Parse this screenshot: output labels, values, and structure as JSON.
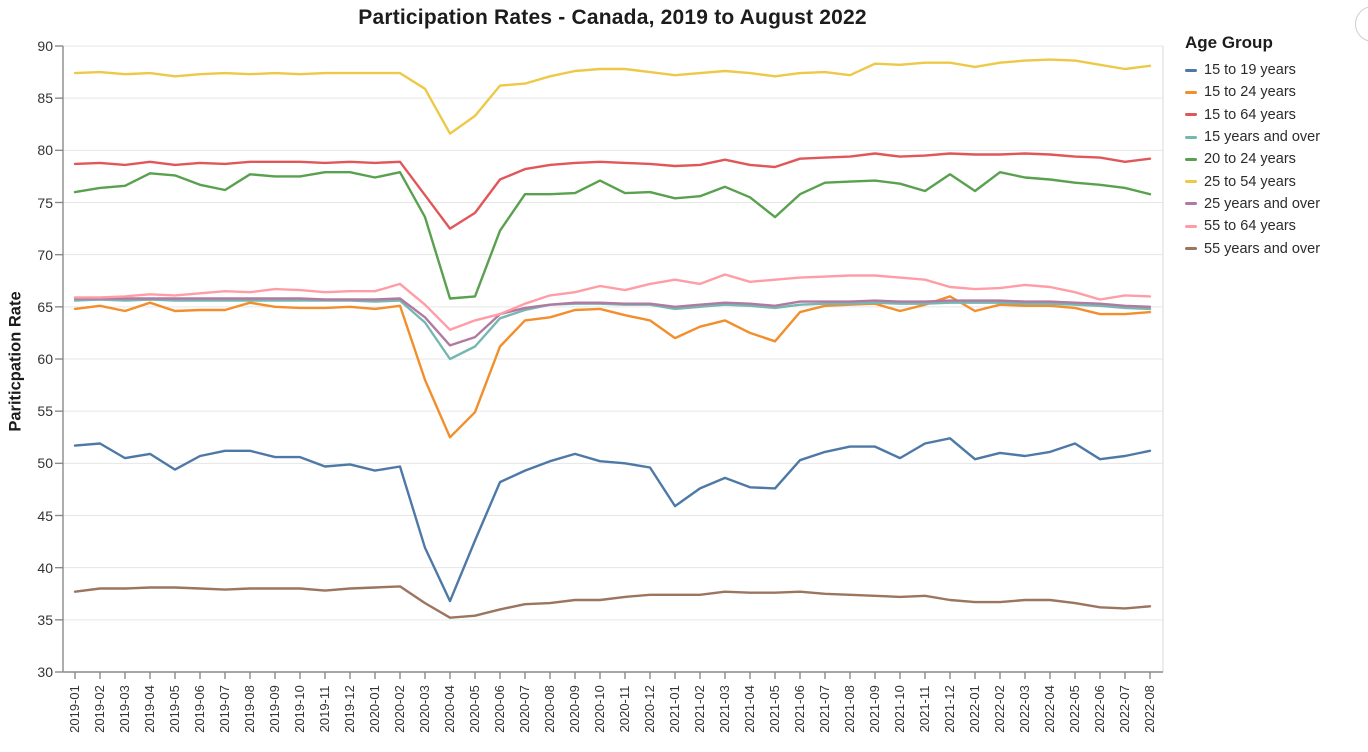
{
  "page": {
    "title": "Participation Rates - Canada, 2019 to August 2022"
  },
  "chart_data": {
    "type": "line",
    "title": "Participation Rates - Canada, 2019 to August 2022",
    "xlabel": "",
    "ylabel": "Pariticpation Rate",
    "ylim": [
      30,
      90
    ],
    "yticks": [
      30,
      35,
      40,
      45,
      50,
      55,
      60,
      65,
      70,
      75,
      80,
      85,
      90
    ],
    "grid": "horizontal-light",
    "legend_title": "Age Group",
    "legend_position": "right",
    "x": [
      "2019-01",
      "2019-02",
      "2019-03",
      "2019-04",
      "2019-05",
      "2019-06",
      "2019-07",
      "2019-08",
      "2019-09",
      "2019-10",
      "2019-11",
      "2019-12",
      "2020-01",
      "2020-02",
      "2020-03",
      "2020-04",
      "2020-05",
      "2020-06",
      "2020-07",
      "2020-08",
      "2020-09",
      "2020-10",
      "2020-11",
      "2020-12",
      "2021-01",
      "2021-02",
      "2021-03",
      "2021-04",
      "2021-05",
      "2021-06",
      "2021-07",
      "2021-08",
      "2021-09",
      "2021-10",
      "2021-11",
      "2021-12",
      "2022-01",
      "2022-02",
      "2022-03",
      "2022-04",
      "2022-05",
      "2022-06",
      "2022-07",
      "2022-08"
    ],
    "series": [
      {
        "name": "15 to 19 years",
        "color": "#4e79a7",
        "values": [
          51.7,
          51.9,
          50.5,
          50.9,
          49.4,
          50.7,
          51.2,
          51.2,
          50.6,
          50.6,
          49.7,
          49.9,
          49.3,
          49.7,
          41.9,
          36.8,
          42.6,
          48.2,
          49.3,
          50.2,
          50.9,
          50.2,
          50.0,
          49.6,
          45.9,
          47.6,
          48.6,
          47.7,
          47.6,
          50.3,
          51.1,
          51.6,
          51.6,
          50.5,
          51.9,
          52.4,
          50.4,
          51.0,
          50.7,
          51.1,
          51.9,
          50.4,
          50.7,
          51.2
        ]
      },
      {
        "name": "15 to 24 years",
        "color": "#f28e2b",
        "values": [
          64.8,
          65.1,
          64.6,
          65.4,
          64.6,
          64.7,
          64.7,
          65.4,
          65.0,
          64.9,
          64.9,
          65.0,
          64.8,
          65.1,
          58.0,
          52.5,
          54.9,
          61.2,
          63.7,
          64.0,
          64.7,
          64.8,
          64.2,
          63.7,
          62.0,
          63.1,
          63.7,
          62.5,
          61.7,
          64.5,
          65.1,
          65.2,
          65.3,
          64.6,
          65.2,
          66.0,
          64.6,
          65.2,
          65.1,
          65.1,
          64.9,
          64.3,
          64.3,
          64.5
        ]
      },
      {
        "name": "15 to 64 years",
        "color": "#e15759",
        "values": [
          78.7,
          78.8,
          78.6,
          78.9,
          78.6,
          78.8,
          78.7,
          78.9,
          78.9,
          78.9,
          78.8,
          78.9,
          78.8,
          78.9,
          75.7,
          72.5,
          74.0,
          77.2,
          78.2,
          78.6,
          78.8,
          78.9,
          78.8,
          78.7,
          78.5,
          78.6,
          79.1,
          78.6,
          78.4,
          79.2,
          79.3,
          79.4,
          79.7,
          79.4,
          79.5,
          79.7,
          79.6,
          79.6,
          79.7,
          79.6,
          79.4,
          79.3,
          78.9,
          79.2
        ]
      },
      {
        "name": "15 years and over",
        "color": "#76b7b2",
        "values": [
          65.6,
          65.7,
          65.6,
          65.7,
          65.6,
          65.6,
          65.6,
          65.6,
          65.6,
          65.6,
          65.6,
          65.6,
          65.5,
          65.6,
          63.5,
          60.0,
          61.2,
          63.9,
          64.7,
          65.2,
          65.3,
          65.3,
          65.2,
          65.2,
          64.8,
          65.0,
          65.2,
          65.1,
          64.9,
          65.2,
          65.3,
          65.3,
          65.4,
          65.3,
          65.3,
          65.4,
          65.4,
          65.4,
          65.3,
          65.3,
          65.2,
          65.1,
          64.9,
          64.8
        ]
      },
      {
        "name": "20 to 24 years",
        "color": "#59a14f",
        "values": [
          76.0,
          76.4,
          76.6,
          77.8,
          77.6,
          76.7,
          76.2,
          77.7,
          77.5,
          77.5,
          77.9,
          77.9,
          77.4,
          77.9,
          73.6,
          65.8,
          66.0,
          72.3,
          75.8,
          75.8,
          75.9,
          77.1,
          75.9,
          76.0,
          75.4,
          75.6,
          76.5,
          75.5,
          73.6,
          75.8,
          76.9,
          77.0,
          77.1,
          76.8,
          76.1,
          77.7,
          76.1,
          77.9,
          77.4,
          77.2,
          76.9,
          76.7,
          76.4,
          75.8
        ]
      },
      {
        "name": "25 to 54 years",
        "color": "#edc948",
        "values": [
          87.4,
          87.5,
          87.3,
          87.4,
          87.1,
          87.3,
          87.4,
          87.3,
          87.4,
          87.3,
          87.4,
          87.4,
          87.4,
          87.4,
          85.9,
          81.6,
          83.3,
          86.2,
          86.4,
          87.1,
          87.6,
          87.8,
          87.8,
          87.5,
          87.2,
          87.4,
          87.6,
          87.4,
          87.1,
          87.4,
          87.5,
          87.2,
          88.3,
          88.2,
          88.4,
          88.4,
          88.0,
          88.4,
          88.6,
          88.7,
          88.6,
          88.2,
          87.8,
          88.1
        ]
      },
      {
        "name": "25 years and over",
        "color": "#b07aa1",
        "values": [
          65.8,
          65.8,
          65.8,
          65.8,
          65.8,
          65.8,
          65.8,
          65.8,
          65.8,
          65.8,
          65.7,
          65.7,
          65.7,
          65.8,
          64.0,
          61.3,
          62.1,
          64.3,
          64.9,
          65.2,
          65.4,
          65.4,
          65.3,
          65.3,
          65.0,
          65.2,
          65.4,
          65.3,
          65.1,
          65.5,
          65.5,
          65.5,
          65.6,
          65.5,
          65.5,
          65.6,
          65.6,
          65.6,
          65.5,
          65.5,
          65.4,
          65.3,
          65.1,
          65.0
        ]
      },
      {
        "name": "55 to 64 years",
        "color": "#ff9da7",
        "values": [
          65.9,
          65.9,
          66.0,
          66.2,
          66.1,
          66.3,
          66.5,
          66.4,
          66.7,
          66.6,
          66.4,
          66.5,
          66.5,
          67.2,
          65.2,
          62.8,
          63.7,
          64.3,
          65.3,
          66.1,
          66.4,
          67.0,
          66.6,
          67.2,
          67.6,
          67.2,
          68.1,
          67.4,
          67.6,
          67.8,
          67.9,
          68.0,
          68.0,
          67.8,
          67.6,
          66.9,
          66.7,
          66.8,
          67.1,
          66.9,
          66.4,
          65.7,
          66.1,
          66.0
        ]
      },
      {
        "name": "55 years and over",
        "color": "#9c755f",
        "values": [
          37.7,
          38.0,
          38.0,
          38.1,
          38.1,
          38.0,
          37.9,
          38.0,
          38.0,
          38.0,
          37.8,
          38.0,
          38.1,
          38.2,
          36.6,
          35.2,
          35.4,
          36.0,
          36.5,
          36.6,
          36.9,
          36.9,
          37.2,
          37.4,
          37.4,
          37.4,
          37.7,
          37.6,
          37.6,
          37.7,
          37.5,
          37.4,
          37.3,
          37.2,
          37.3,
          36.9,
          36.7,
          36.7,
          36.9,
          36.9,
          36.6,
          36.2,
          36.1,
          36.3
        ]
      }
    ]
  },
  "style_colors": {
    "grid": "#e6e6e6",
    "axis": "#8a8a8a",
    "right_spine": "#e0e0e0",
    "tick_text": "#333333"
  }
}
